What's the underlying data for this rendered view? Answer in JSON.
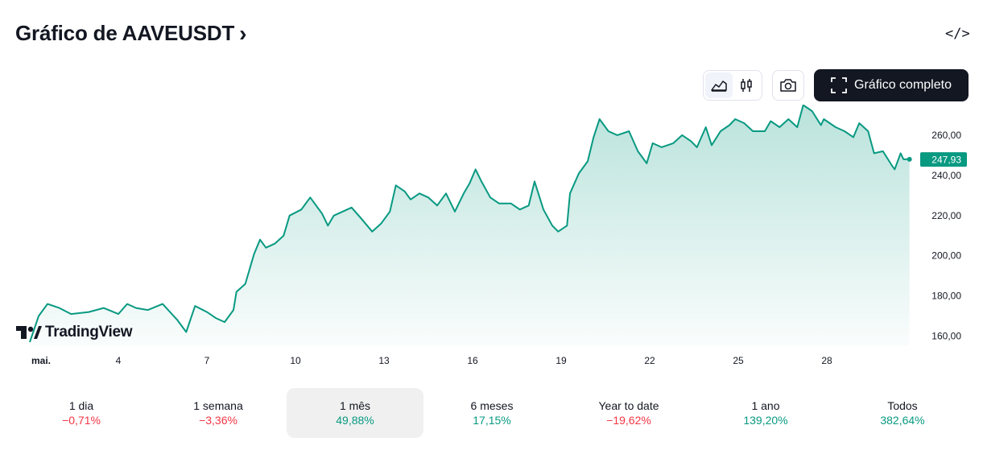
{
  "header": {
    "title": "Gráfico de AAVEUSDT",
    "chevron": "›",
    "embed_icon": "code-icon",
    "embed_label": "</>"
  },
  "toolbar": {
    "area_icon": "area-chart-icon",
    "candles_icon": "candlestick-icon",
    "camera_icon": "camera-icon",
    "full_label": "Gráfico completo",
    "full_icon": "fullscreen-icon"
  },
  "colors": {
    "line": "#089981",
    "positive": "#089981",
    "negative": "#f23645",
    "button_dark": "#131722"
  },
  "logo": {
    "text": "TradingView"
  },
  "chart_data": {
    "type": "area",
    "symbol": "AAVEUSDT",
    "x_ticks": [
      {
        "day": 1,
        "label": "mai."
      },
      {
        "day": 4,
        "label": "4"
      },
      {
        "day": 7,
        "label": "7"
      },
      {
        "day": 10,
        "label": "10"
      },
      {
        "day": 13,
        "label": "13"
      },
      {
        "day": 16,
        "label": "16"
      },
      {
        "day": 19,
        "label": "19"
      },
      {
        "day": 22,
        "label": "22"
      },
      {
        "day": 25,
        "label": "25"
      },
      {
        "day": 28,
        "label": "28"
      }
    ],
    "y_ticks": [
      "260,00",
      "240,00",
      "220,00",
      "200,00",
      "180,00",
      "160,00"
    ],
    "y_tick_values": [
      260,
      240,
      220,
      200,
      180,
      160
    ],
    "ylim": [
      155,
      272
    ],
    "xlim": [
      1,
      31
    ],
    "last_price": 247.93,
    "last_price_label": "247,93",
    "series": [
      {
        "x": [
          1.0,
          1.3,
          1.6,
          2.0,
          2.4,
          3.0,
          3.5,
          4.0,
          4.3,
          4.6,
          5.0,
          5.5,
          6.0,
          6.3,
          6.6,
          7.0,
          7.3,
          7.6,
          7.9,
          8.0,
          8.3,
          8.6,
          8.8,
          9.0,
          9.3,
          9.6,
          9.8,
          10.2,
          10.5,
          10.9,
          11.1,
          11.3,
          11.6,
          11.9,
          12.2,
          12.6,
          12.9,
          13.2,
          13.4,
          13.7,
          13.9,
          14.2,
          14.5,
          14.8,
          15.1,
          15.4,
          15.7,
          15.9,
          16.1,
          16.3,
          16.6,
          16.9,
          17.3,
          17.6,
          17.9,
          18.1,
          18.4,
          18.7,
          18.9,
          19.2,
          19.3,
          19.6,
          19.9,
          20.1,
          20.3,
          20.6,
          20.9,
          21.3,
          21.6,
          21.9,
          22.1,
          22.4,
          22.8,
          23.1,
          23.4,
          23.6,
          23.9,
          24.1,
          24.4,
          24.7,
          24.9,
          25.2,
          25.5,
          25.9,
          26.1,
          26.4,
          26.7,
          27.0,
          27.2,
          27.5,
          27.8,
          27.9,
          28.3,
          28.6,
          28.9,
          29.1,
          29.4,
          29.6,
          29.9,
          30.2,
          30.3,
          30.5,
          30.6,
          30.8
        ],
        "y": [
          157,
          170,
          176,
          174,
          171,
          172,
          174,
          171,
          176,
          174,
          173,
          176,
          168,
          162,
          175,
          172,
          169,
          167,
          173,
          182,
          186,
          201,
          208,
          204,
          206,
          210,
          220,
          223,
          229,
          221,
          215,
          220,
          222,
          224,
          219,
          212,
          216,
          222,
          235,
          232,
          228,
          231,
          229,
          225,
          231,
          222,
          231,
          236,
          243,
          237,
          229,
          226,
          226,
          223,
          225,
          237,
          223,
          215,
          212,
          215,
          231,
          241,
          247,
          259,
          268,
          262,
          260,
          262,
          252,
          246,
          256,
          254,
          256,
          260,
          257,
          254,
          264,
          255,
          262,
          265,
          268,
          266,
          262,
          262,
          267,
          264,
          268,
          264,
          275,
          272,
          265,
          268,
          264,
          262,
          259,
          266,
          262,
          251,
          252,
          245,
          243,
          251,
          248,
          248
        ]
      }
    ]
  },
  "periods": [
    {
      "label": "1 dia",
      "value": "−0,71%",
      "sign": "neg"
    },
    {
      "label": "1 semana",
      "value": "−3,36%",
      "sign": "neg"
    },
    {
      "label": "1 mês",
      "value": "49,88%",
      "sign": "pos",
      "active": true
    },
    {
      "label": "6 meses",
      "value": "17,15%",
      "sign": "pos"
    },
    {
      "label": "Year to date",
      "value": "−19,62%",
      "sign": "neg"
    },
    {
      "label": "1 ano",
      "value": "139,20%",
      "sign": "pos"
    },
    {
      "label": "Todos",
      "value": "382,64%",
      "sign": "pos"
    }
  ]
}
